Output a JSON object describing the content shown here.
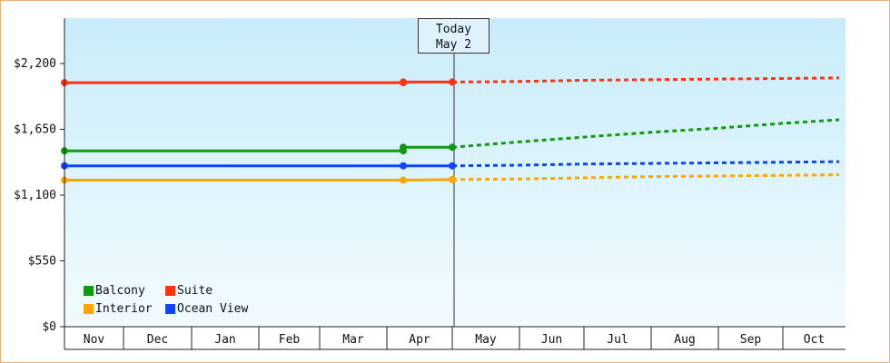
{
  "chart_data": {
    "type": "line",
    "title": "",
    "xlabel": "",
    "ylabel": "",
    "categories": [
      "Nov",
      "Dec",
      "Jan",
      "Feb",
      "Mar",
      "Apr",
      "May",
      "Jun",
      "Jul",
      "Aug",
      "Sep",
      "Oct"
    ],
    "y_ticks": [
      "$0",
      "$550",
      "$1,100",
      "$1,650",
      "$2,200"
    ],
    "ylim": [
      0,
      2200
    ],
    "marker": {
      "line1": "Today",
      "line2": "May 2"
    },
    "legend_placement": "bottom-left",
    "grid": false,
    "series": [
      {
        "name": "Balcony",
        "color": "#119911",
        "actual": [
          [
            0,
            1470
          ],
          [
            5.25,
            1470
          ],
          [
            5.25,
            1500
          ],
          [
            6.0,
            1500
          ]
        ],
        "forecast": [
          [
            6.0,
            1500
          ],
          [
            7.0,
            1545
          ],
          [
            8.0,
            1585
          ],
          [
            9.0,
            1625
          ],
          [
            10.0,
            1660
          ],
          [
            11.0,
            1700
          ],
          [
            11.9,
            1730
          ]
        ]
      },
      {
        "name": "Suite",
        "color": "#ff3311",
        "actual": [
          [
            0,
            2040
          ],
          [
            5.25,
            2040
          ],
          [
            5.25,
            2045
          ],
          [
            6.0,
            2045
          ]
        ],
        "forecast": [
          [
            6.0,
            2045
          ],
          [
            7.0,
            2050
          ],
          [
            8.0,
            2060
          ],
          [
            9.0,
            2065
          ],
          [
            10.0,
            2070
          ],
          [
            11.0,
            2075
          ],
          [
            11.9,
            2080
          ]
        ]
      },
      {
        "name": "Interior",
        "color": "#ffa500",
        "actual": [
          [
            0,
            1225
          ],
          [
            5.25,
            1225
          ],
          [
            6.0,
            1230
          ]
        ],
        "forecast": [
          [
            6.0,
            1230
          ],
          [
            7.0,
            1235
          ],
          [
            8.0,
            1245
          ],
          [
            9.0,
            1255
          ],
          [
            10.0,
            1260
          ],
          [
            11.0,
            1265
          ],
          [
            11.9,
            1270
          ]
        ]
      },
      {
        "name": "Ocean View",
        "color": "#1144ff",
        "actual": [
          [
            0,
            1345
          ],
          [
            5.25,
            1345
          ],
          [
            6.0,
            1345
          ]
        ],
        "forecast": [
          [
            6.0,
            1345
          ],
          [
            7.0,
            1350
          ],
          [
            8.0,
            1360
          ],
          [
            9.0,
            1365
          ],
          [
            10.0,
            1370
          ],
          [
            11.0,
            1375
          ],
          [
            11.9,
            1380
          ]
        ]
      }
    ]
  }
}
